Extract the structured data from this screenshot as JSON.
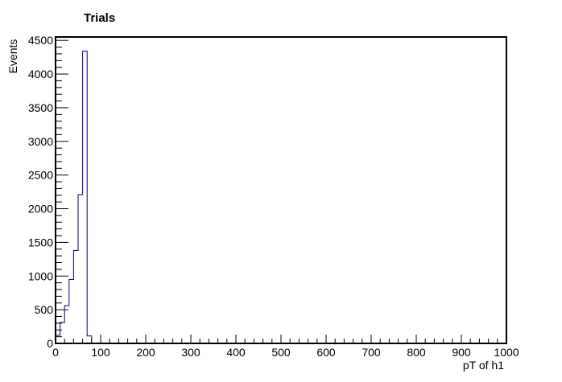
{
  "chart_data": {
    "type": "histogram",
    "title": "Trials",
    "xlabel": "pT of h1",
    "ylabel": "Events",
    "xlim": [
      0,
      1000
    ],
    "ylim": [
      0,
      4550
    ],
    "bin_width": 10,
    "bin_edges_start": 0,
    "values": [
      120,
      310,
      560,
      950,
      1380,
      2210,
      4340,
      110,
      0
    ],
    "x_ticks": [
      0,
      100,
      200,
      300,
      400,
      500,
      600,
      700,
      800,
      900,
      1000
    ],
    "y_ticks": [
      0,
      500,
      1000,
      1500,
      2000,
      2500,
      3000,
      3500,
      4000,
      4500
    ],
    "line_color": "#000080",
    "frame_color": "#000000",
    "grid": false
  }
}
